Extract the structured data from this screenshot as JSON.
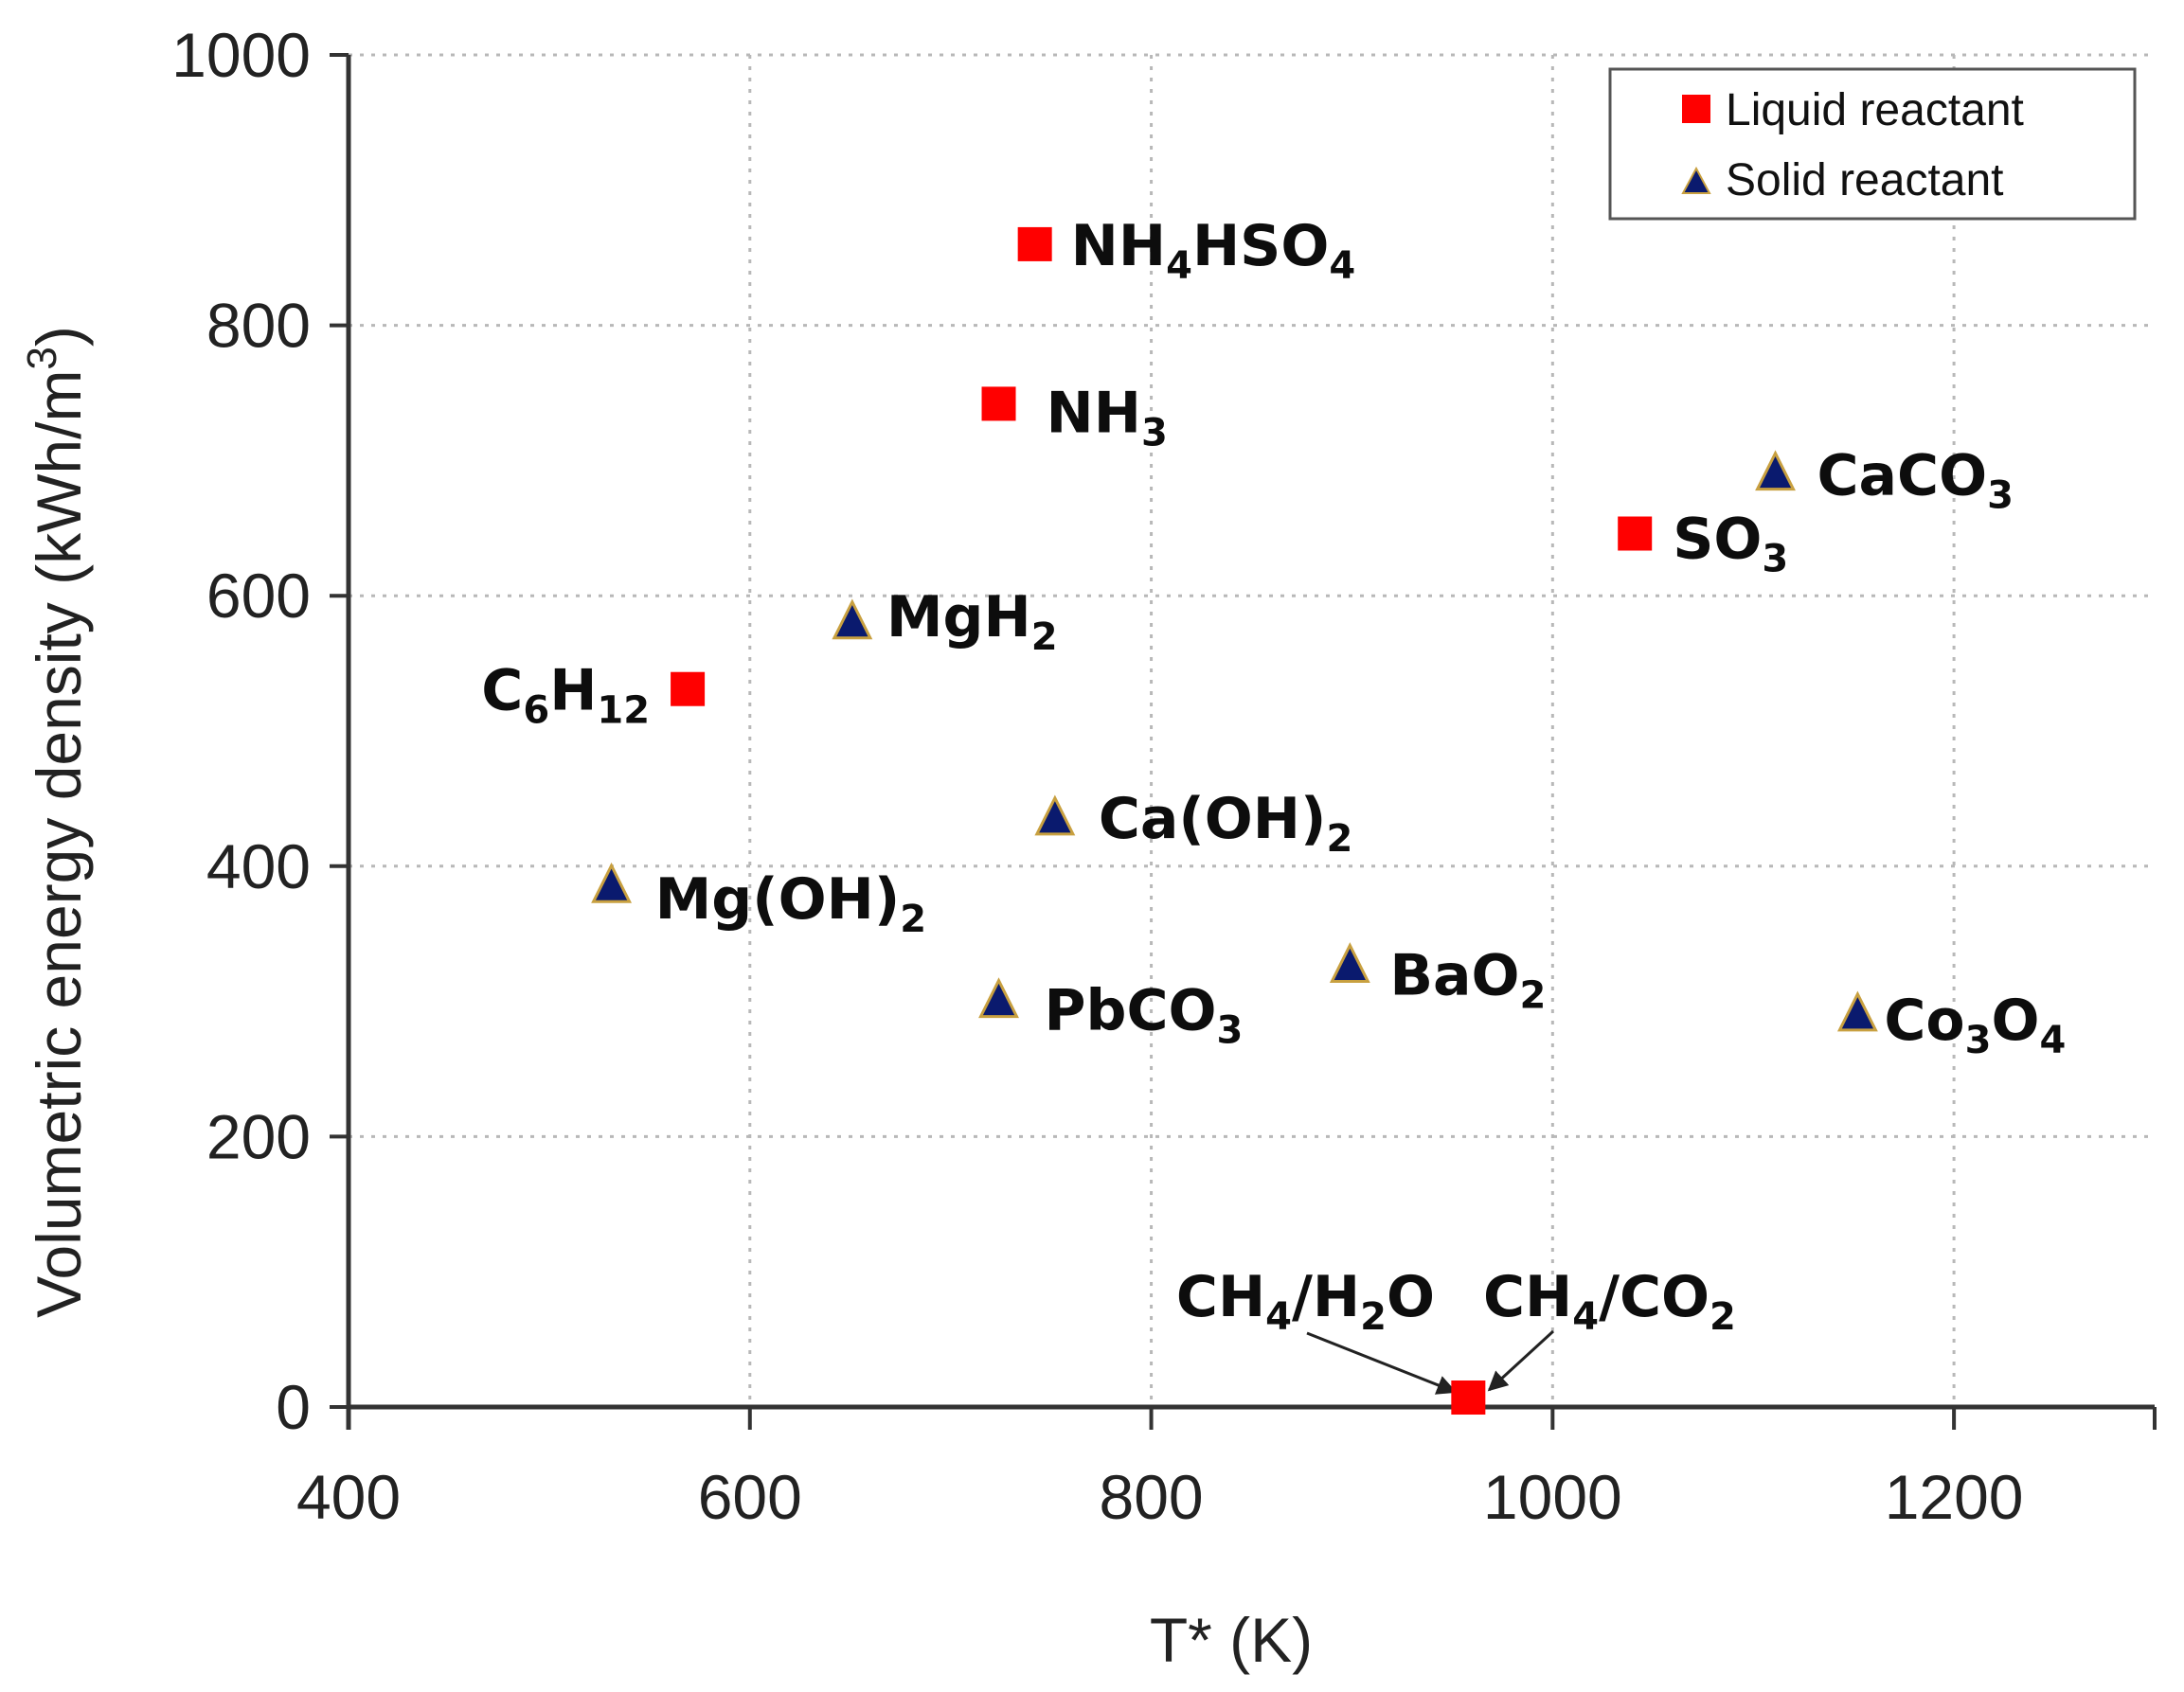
{
  "chart_data": {
    "type": "scatter",
    "xlabel": "T* (K)",
    "ylabel": "Volumetric energy density (kWh/m",
    "ylabel_sup": "3",
    "ylabel_end": ")",
    "xlim": [
      400,
      1300
    ],
    "ylim": [
      0,
      1000
    ],
    "xticks": [
      "400",
      "600",
      "800",
      "1000",
      "1200"
    ],
    "yticks": [
      "0",
      "200",
      "400",
      "600",
      "800",
      "1000"
    ],
    "xtick_values": [
      400,
      600,
      800,
      1000,
      1200
    ],
    "ytick_values": [
      0,
      200,
      400,
      600,
      800,
      1000
    ],
    "grid": true,
    "legend_position": "top-right",
    "series": [
      {
        "name": "Liquid reactant",
        "marker": "square",
        "color": "#ff0000",
        "points": [
          {
            "x": 742,
            "y": 860,
            "label": [
              "NH",
              "4",
              "HSO",
              "4"
            ]
          },
          {
            "x": 724,
            "y": 742,
            "label": [
              "NH",
              "3"
            ]
          },
          {
            "x": 569,
            "y": 531,
            "label": [
              "C",
              "6",
              "H",
              "12"
            ]
          },
          {
            "x": 1041,
            "y": 646,
            "label": [
              "SO",
              "3"
            ]
          },
          {
            "x": 958,
            "y": 7,
            "label": []
          }
        ]
      },
      {
        "name": "Solid reactant",
        "marker": "triangle",
        "color": "#0a1a6e",
        "points": [
          {
            "x": 651,
            "y": 580,
            "label": [
              "MgH",
              "2"
            ]
          },
          {
            "x": 752,
            "y": 435,
            "label": [
              "Ca(OH)",
              "2"
            ]
          },
          {
            "x": 531,
            "y": 385,
            "label": [
              "Mg(OH)",
              "2"
            ]
          },
          {
            "x": 724,
            "y": 300,
            "label": [
              "PbCO",
              "3"
            ]
          },
          {
            "x": 899,
            "y": 326,
            "label": [
              "BaO",
              "2"
            ]
          },
          {
            "x": 1111,
            "y": 690,
            "label": [
              "CaCO",
              "3"
            ]
          },
          {
            "x": 1152,
            "y": 290,
            "label": [
              "Co",
              "3",
              "O",
              "4"
            ]
          }
        ]
      }
    ],
    "annotations": [
      {
        "label": [
          "CH",
          "4",
          "/H",
          "2",
          "O"
        ],
        "x": 958,
        "y": 7
      },
      {
        "label": [
          "CH",
          "4",
          "/CO",
          "2"
        ],
        "x": 958,
        "y": 7
      }
    ]
  }
}
